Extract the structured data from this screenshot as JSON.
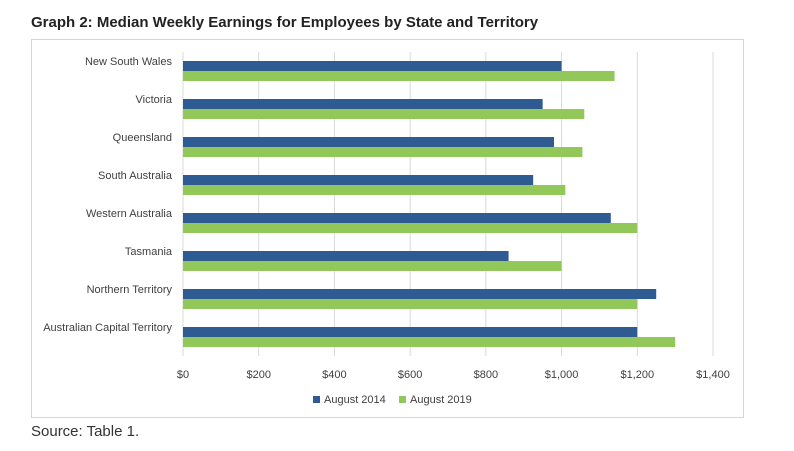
{
  "title": "Graph 2: Median Weekly Earnings for Employees by State and Territory",
  "source": "Source: Table 1.",
  "chart_data": {
    "type": "bar",
    "orientation": "horizontal",
    "categories": [
      "New South Wales",
      "Victoria",
      "Queensland",
      "South Australia",
      "Western Australia",
      "Tasmania",
      "Northern Territory",
      "Australian Capital Territory"
    ],
    "series": [
      {
        "name": "August 2014",
        "color": "#2e5c92",
        "values": [
          1000,
          950,
          980,
          925,
          1130,
          860,
          1250,
          1200
        ]
      },
      {
        "name": "August 2019",
        "color": "#92c85a",
        "values": [
          1140,
          1060,
          1055,
          1010,
          1200,
          1000,
          1200,
          1300
        ]
      }
    ],
    "xlim": [
      0,
      1400
    ],
    "xticks": [
      0,
      200,
      400,
      600,
      800,
      1000,
      1200,
      1400
    ],
    "xtick_labels": [
      "$0",
      "$200",
      "$400",
      "$600",
      "$800",
      "$1,000",
      "$1,200",
      "$1,400"
    ],
    "grid": "vertical",
    "legend_position": "bottom"
  }
}
